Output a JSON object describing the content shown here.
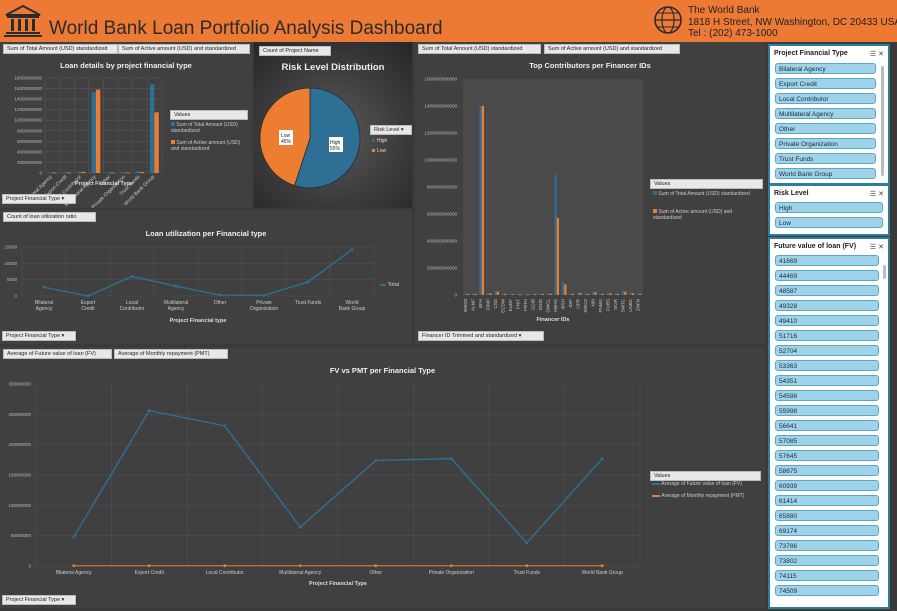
{
  "header": {
    "title": "World Bank Loan Portfolio Analysis Dashboard",
    "org_name": "The World Bank",
    "address": "1818 H Street, NW Washington, DC 20433 USA",
    "phone": "Tel : (202) 473-1000",
    "bg_color": "#ec7a35"
  },
  "colors": {
    "blue": "#2e6f95",
    "orange": "#ed7d31",
    "panel": "#404040"
  },
  "chart1": {
    "pivot_fields": [
      "Sum of Total Amount (USD) standardized",
      "Sum of Active amount (USD) and standardized"
    ],
    "title": "Loan details by project financial type",
    "xlabel": "Project Financial Type",
    "legend_title": "Values",
    "filter_label": "Project Financial Type",
    "y_ticks": [
      "18000000000",
      "16000000000",
      "14000000000",
      "12000000000",
      "10000000000",
      "8000000000",
      "6000000000",
      "4000000000",
      "2000000000",
      "0"
    ],
    "legend_labels": [
      "Sum of Total Amount (USD) standardized",
      "Sum of Active amount (USD) and standardized"
    ]
  },
  "chart2": {
    "pivot_field": "Count of Project Name",
    "title": "Risk Level Distribution",
    "legend_title": "Risk Level",
    "slice_labels": {
      "high": "High 55%",
      "low": "Low 45%"
    }
  },
  "chart3": {
    "pivot_fields": [
      "Sum of Total Amount (USD) standardized",
      "Sum of Active amount (USD) and standardized"
    ],
    "title": "Top Contributors per Financer IDs",
    "xlabel": "Financer IDs",
    "legend_title": "Values",
    "filter_label": "Financer ID Trimmed and standardized",
    "y_ticks": [
      "1600000000000",
      "1400000000000",
      "1200000000000",
      "1000000000000",
      "800000000000",
      "600000000000",
      "400000000000",
      "200000000000",
      "0"
    ],
    "legend_labels": [
      "Sum of Total Amount (USD) standardized",
      "Sum of Active amount (USD) and standardized"
    ]
  },
  "chart4": {
    "pivot_field": "Count of loan utilization ratio",
    "title": "Loan utilization per Financial type",
    "xlabel": "Project Financial type",
    "legend_label": "Total",
    "filter_label": "Project Financial Type",
    "y_ticks": [
      "15000",
      "10000",
      "5000",
      "0"
    ]
  },
  "chart5": {
    "pivot_fields": [
      "Average of Future value of loan (FV)",
      "Average of Monthly repayment (PMT)"
    ],
    "title": "FV vs PMT per Financial Type",
    "xlabel": "Project Financial Type",
    "legend_title": "Values",
    "filter_label": "Project Financial Type",
    "y_ticks": [
      "300000000",
      "250000000",
      "200000000",
      "150000000",
      "100000000",
      "50000000",
      "0"
    ],
    "legend_labels": [
      "Average of Future value of loan (FV)",
      "Average of Monthly repayment (PMT)"
    ]
  },
  "chart_data": [
    {
      "type": "bar",
      "title": "Loan details by project financial type",
      "xlabel": "Project Financial Type",
      "ylim": [
        0,
        18000000000
      ],
      "categories": [
        "Bilateral Agency",
        "Export Credit",
        "Local Contributor",
        "Multilateral Agency",
        "Other",
        "Private Organization",
        "Trust Funds",
        "World Bank Group"
      ],
      "series": [
        {
          "name": "Sum of Total Amount (USD) standardized",
          "values": [
            150000000,
            150000000,
            250000000,
            15300000000,
            100000000,
            150000000,
            300000000,
            16800000000
          ]
        },
        {
          "name": "Sum of Active amount (USD) and standardized",
          "values": [
            100000000,
            100000000,
            200000000,
            15800000000,
            100000000,
            100000000,
            200000000,
            11500000000
          ]
        }
      ]
    },
    {
      "type": "pie",
      "title": "Risk Level Distribution",
      "categories": [
        "High",
        "Low"
      ],
      "values": [
        55,
        45
      ],
      "legend": "right"
    },
    {
      "type": "bar",
      "title": "Top Contributors per Financer IDs",
      "xlabel": "Financer IDs",
      "ylim": [
        0,
        1600000000000
      ],
      "categories": [
        "BSKM",
        "ALMF",
        "BFH",
        "CIMP",
        "CSD",
        "ECDW",
        "EUDF",
        "FNIT",
        "FRTH",
        "GCIB",
        "GNID",
        "GWCL",
        "HBHG",
        "IBSH",
        "IDIF",
        "IJPR",
        "KMCO",
        "NBI",
        "PNMG",
        "PUBS",
        "SIGR",
        "SWTC",
        "UNBC",
        "ZNFN"
      ],
      "series": [
        {
          "name": "Sum of Total Amount (USD) standardized",
          "values": [
            10000000000,
            10000000000,
            1400000000000,
            15000000000,
            30000000000,
            10000000000,
            8000000000,
            5000000000,
            5000000000,
            8000000000,
            10000000000,
            12000000000,
            890000000000,
            100000000000,
            10000000000,
            20000000000,
            10000000000,
            25000000000,
            10000000000,
            15000000000,
            10000000000,
            35000000000,
            15000000000,
            10000000000
          ]
        },
        {
          "name": "Sum of Active amount (USD) and standardized",
          "values": [
            8000000000,
            8000000000,
            1400000000000,
            12000000000,
            25000000000,
            8000000000,
            6000000000,
            4000000000,
            4000000000,
            6000000000,
            8000000000,
            10000000000,
            570000000000,
            80000000000,
            8000000000,
            15000000000,
            8000000000,
            20000000000,
            8000000000,
            12000000000,
            8000000000,
            25000000000,
            12000000000,
            8000000000
          ]
        }
      ]
    },
    {
      "type": "line",
      "title": "Loan utilization per Financial type",
      "xlabel": "Project Financial type",
      "ylim": [
        0,
        15000
      ],
      "categories": [
        "Bilateral Agency",
        "Export Credit",
        "Local Contributor",
        "Multilateral Agency",
        "Other",
        "Private Organization",
        "Trust Funds",
        "World Bank Group"
      ],
      "series": [
        {
          "name": "Total",
          "values": [
            2700,
            0,
            6000,
            3000,
            300,
            200,
            4300,
            14200
          ]
        }
      ]
    },
    {
      "type": "line",
      "title": "FV vs PMT per Financial Type",
      "xlabel": "Project Financial Type",
      "ylim": [
        0,
        300000000
      ],
      "categories": [
        "Bilateral Agency",
        "Export Credit",
        "Local Contributor",
        "Multilateral Agency",
        "Other",
        "Private Organization",
        "Trust Funds",
        "World Bank Group"
      ],
      "series": [
        {
          "name": "Average of Future value of loan (FV)",
          "values": [
            48000000,
            256000000,
            231000000,
            64000000,
            174000000,
            177000000,
            38000000,
            177000000
          ]
        },
        {
          "name": "Average of Monthly repayment (PMT)",
          "values": [
            500000,
            500000,
            500000,
            500000,
            500000,
            500000,
            500000,
            500000
          ]
        }
      ]
    }
  ],
  "slicers": {
    "financial_type": {
      "header": "Project Financial Type",
      "items": [
        "Bilateral Agency",
        "Export Credit",
        "Local Contributor",
        "Multilateral Agency",
        "Other",
        "Private Organization",
        "Trust Funds",
        "World Bank Group"
      ]
    },
    "risk_level": {
      "header": "Risk Level",
      "items": [
        "High",
        "Low"
      ]
    },
    "future_value": {
      "header": "Future value of loan (FV)",
      "items": [
        "41669",
        "44469",
        "48587",
        "49328",
        "49410",
        "51716",
        "52704",
        "53363",
        "54351",
        "54598",
        "55998",
        "56641",
        "57085",
        "57645",
        "58675",
        "60939",
        "61414",
        "65880",
        "69174",
        "73786",
        "73802",
        "74115",
        "74509"
      ]
    }
  }
}
